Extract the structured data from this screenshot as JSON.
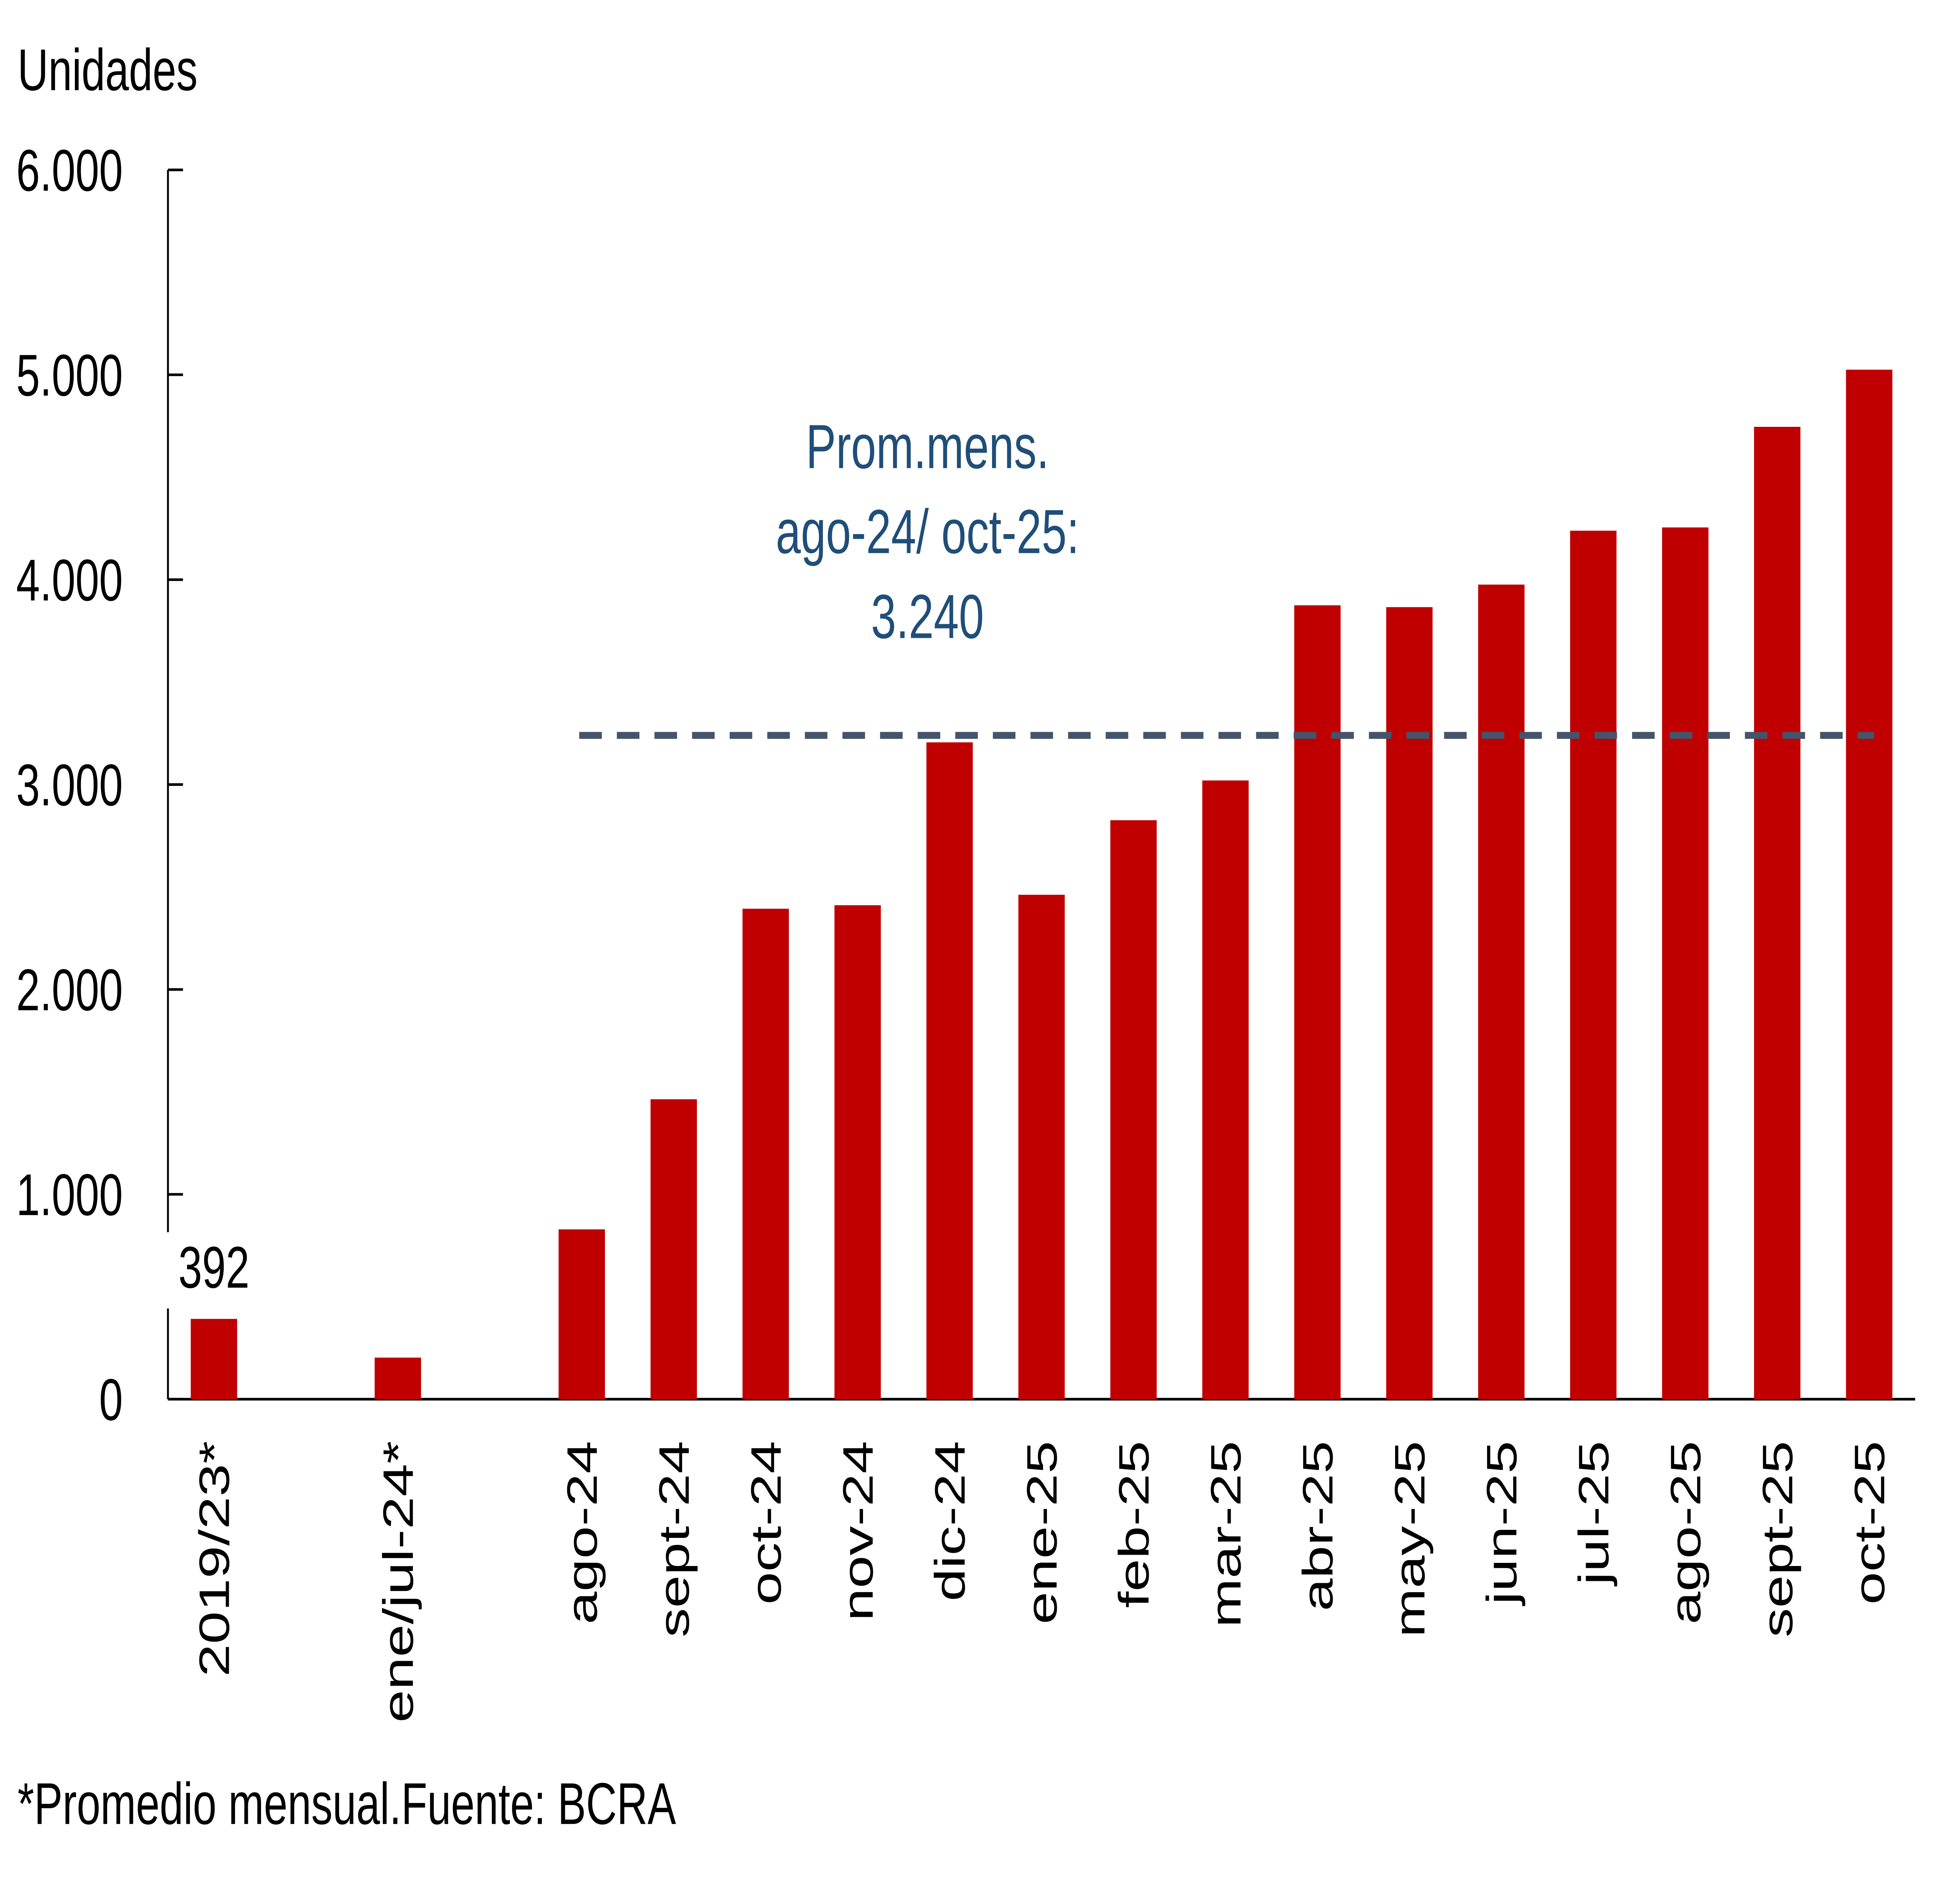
{
  "chart_data": {
    "type": "bar",
    "ylabel": "Unidades",
    "ylim": [
      0,
      6000
    ],
    "yticks": [
      "0",
      "1.000",
      "2.000",
      "3.000",
      "4.000",
      "5.000",
      "6.000"
    ],
    "ytick_values": [
      0,
      1000,
      2000,
      3000,
      4000,
      5000,
      6000
    ],
    "grid": false,
    "categories": [
      "2019/23*",
      "ene/jul-24*",
      "ago-24",
      "sept-24",
      "oct-24",
      "nov-24",
      "dic-24",
      "ene-25",
      "feb-25",
      "mar-25",
      "abr-25",
      "may-25",
      "jun-25",
      "jul-25",
      "ago-25",
      "sept-25",
      "oct-25"
    ],
    "values": [
      392,
      203,
      829,
      1464,
      2394,
      2411,
      3206,
      2462,
      2826,
      3020,
      3875,
      3866,
      3976,
      4239,
      4255,
      4746,
      5025
    ],
    "bar_color": "#c00000",
    "data_labels": [
      {
        "category": "2019/23*",
        "text": "392",
        "color": "#c00000"
      }
    ],
    "reference_line": {
      "value": 3240,
      "from": "ago-24",
      "to": "oct-25",
      "style": "dashed",
      "color": "#44546a"
    },
    "annotation": [
      "Prom.mens.",
      "ago-24/ oct-25:",
      "3.240"
    ],
    "annotation_color": "#1f4e79",
    "footnote": "*Promedio mensual.Fuente: BCRA"
  }
}
